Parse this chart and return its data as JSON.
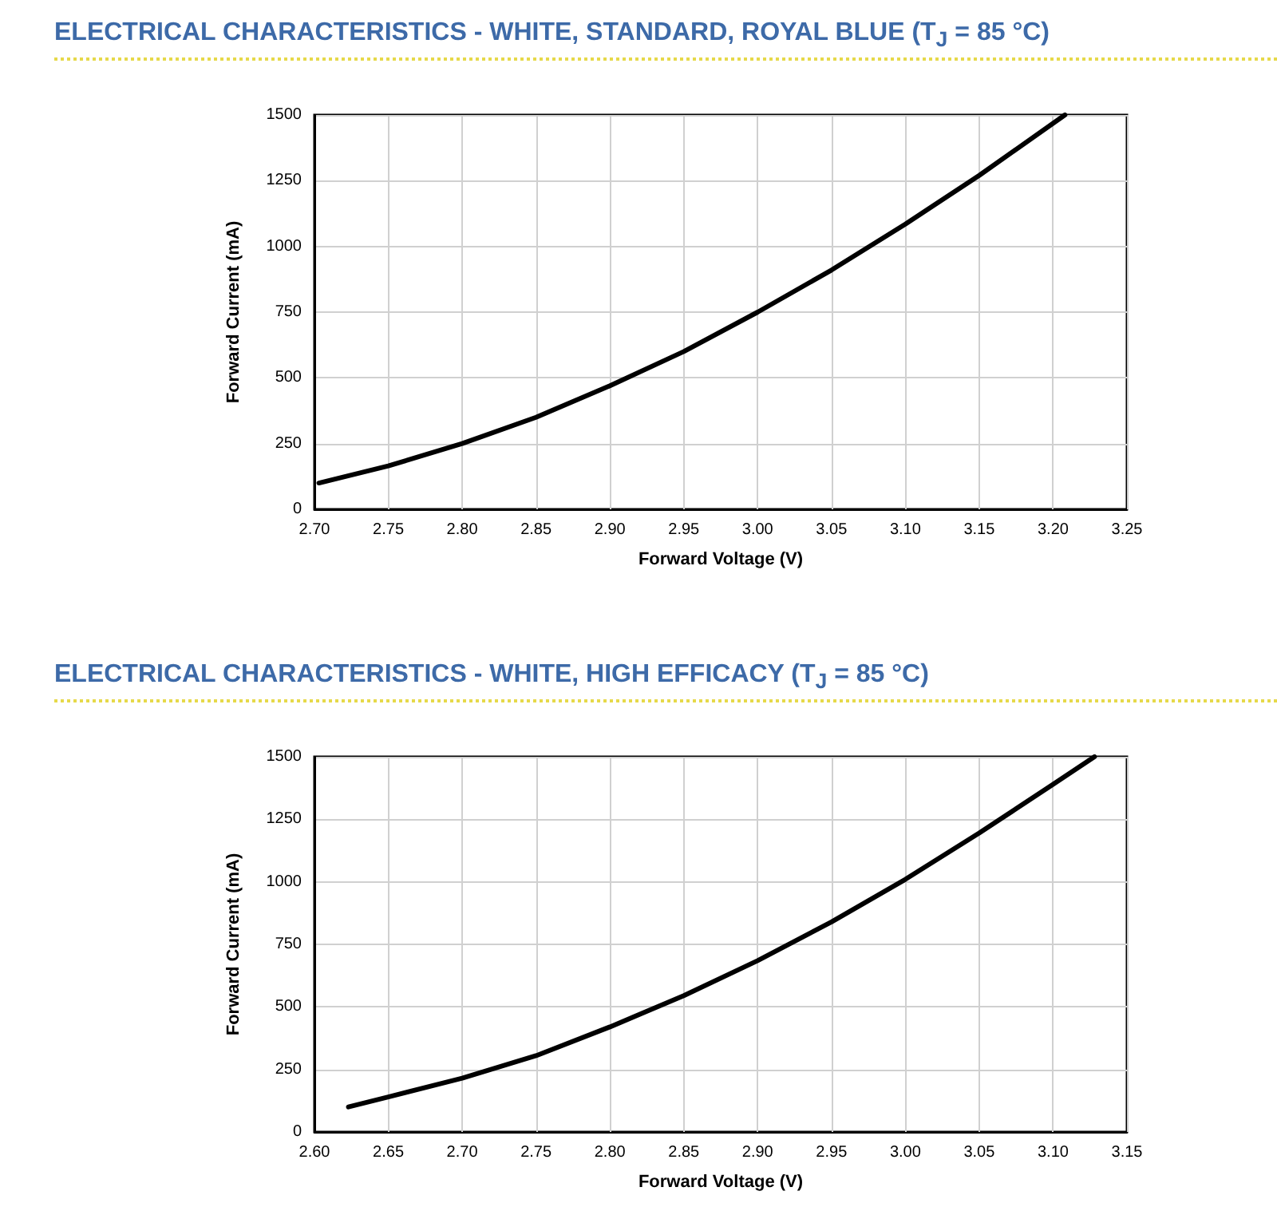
{
  "chart_data": [
    {
      "type": "line",
      "title": "ELECTRICAL CHARACTERISTICS - WHITE, STANDARD, ROYAL BLUE (T$_{J}$ = 85 °C)",
      "xlabel": "Forward Voltage (V)",
      "ylabel": "Forward Current (mA)",
      "x": [
        2.703,
        2.75,
        2.8,
        2.85,
        2.9,
        2.95,
        3.0,
        3.05,
        3.1,
        3.15,
        3.208
      ],
      "values": [
        100,
        165,
        250,
        350,
        470,
        600,
        750,
        910,
        1085,
        1270,
        1500
      ],
      "color": "#000000",
      "marker": "none",
      "line_style": "solid",
      "grid": true,
      "xlim": [
        2.7,
        3.25
      ],
      "xticks": [
        {
          "value": 2.7,
          "label": "2.70"
        },
        {
          "value": 2.75,
          "label": "2.75"
        },
        {
          "value": 2.8,
          "label": "2.80"
        },
        {
          "value": 2.85,
          "label": "2.85"
        },
        {
          "value": 2.9,
          "label": "2.90"
        },
        {
          "value": 2.95,
          "label": "2.95"
        },
        {
          "value": 3.0,
          "label": "3.00"
        },
        {
          "value": 3.05,
          "label": "3.05"
        },
        {
          "value": 3.1,
          "label": "3.10"
        },
        {
          "value": 3.15,
          "label": "3.15"
        },
        {
          "value": 3.2,
          "label": "3.20"
        },
        {
          "value": 3.25,
          "label": "3.25"
        }
      ],
      "ylim": [
        0,
        1500
      ],
      "yticks": [
        0,
        250,
        500,
        750,
        1000,
        1250,
        1500
      ]
    },
    {
      "type": "line",
      "title": "ELECTRICAL CHARACTERISTICS - WHITE, HIGH EFFICACY (T$_{J}$ = 85 °C)",
      "xlabel": "Forward Voltage (V)",
      "ylabel": "Forward Current (mA)",
      "x": [
        2.623,
        2.65,
        2.7,
        2.75,
        2.8,
        2.85,
        2.9,
        2.95,
        3.0,
        3.05,
        3.1,
        3.128
      ],
      "values": [
        100,
        140,
        215,
        305,
        420,
        545,
        685,
        840,
        1010,
        1195,
        1390,
        1500
      ],
      "color": "#000000",
      "marker": "none",
      "line_style": "solid",
      "grid": true,
      "xlim": [
        2.6,
        3.15
      ],
      "xticks": [
        {
          "value": 2.6,
          "label": "2.60"
        },
        {
          "value": 2.65,
          "label": "2.65"
        },
        {
          "value": 2.7,
          "label": "2.70"
        },
        {
          "value": 2.75,
          "label": "2.75"
        },
        {
          "value": 2.8,
          "label": "2.80"
        },
        {
          "value": 2.85,
          "label": "2.85"
        },
        {
          "value": 2.9,
          "label": "2.90"
        },
        {
          "value": 2.95,
          "label": "2.95"
        },
        {
          "value": 3.0,
          "label": "3.00"
        },
        {
          "value": 3.05,
          "label": "3.05"
        },
        {
          "value": 3.1,
          "label": "3.10"
        },
        {
          "value": 3.15,
          "label": "3.15"
        }
      ],
      "ylim": [
        0,
        1500
      ],
      "yticks": [
        0,
        250,
        500,
        750,
        1000,
        1250,
        1500
      ]
    }
  ]
}
